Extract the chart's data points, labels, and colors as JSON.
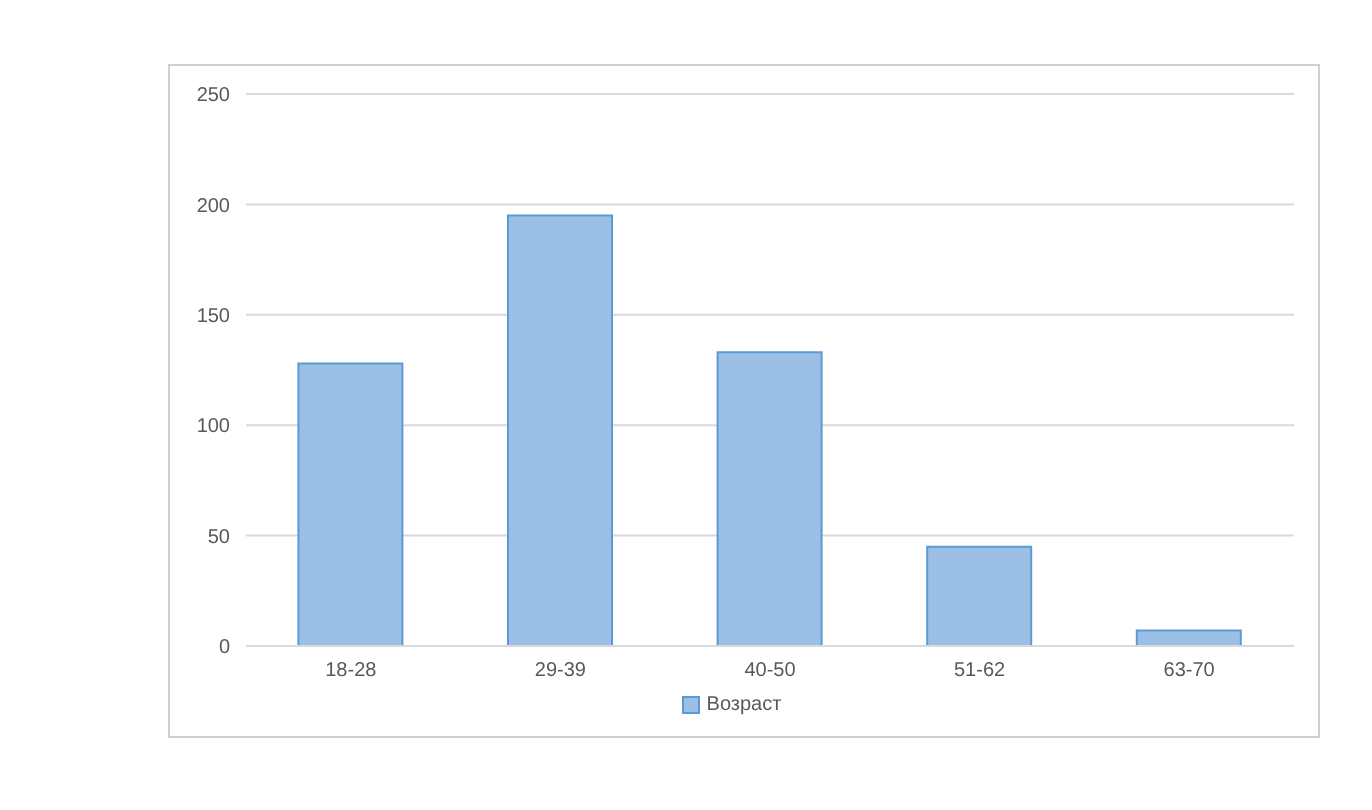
{
  "chart_data": {
    "type": "bar",
    "categories": [
      "18-28",
      "29-39",
      "40-50",
      "51-62",
      "63-70"
    ],
    "series": [
      {
        "name": "Возраст",
        "color": "#9cbfe5",
        "values": [
          128,
          195,
          133,
          45,
          7
        ]
      }
    ],
    "ylim": [
      0,
      250
    ],
    "yticks": [
      0,
      50,
      100,
      150,
      200,
      250
    ],
    "grid": "y",
    "legend": "bottom"
  }
}
